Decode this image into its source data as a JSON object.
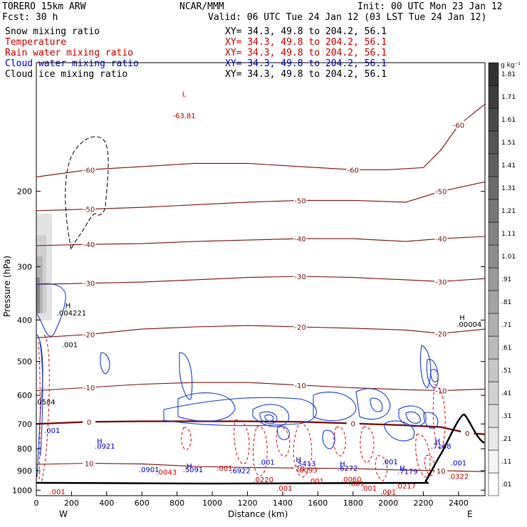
{
  "header": {
    "model": "TORERO  15km ARW",
    "org": "NCAR/MMM",
    "init": "Init: 00 UTC Mon 23 Jan 12",
    "fcst": "Fcst:   30 h",
    "valid": "Valid: 06 UTC Tue 24 Jan 12 (03 LST Tue 24 Jan 12)"
  },
  "fields": [
    {
      "name": "Snow mixing ratio",
      "xy": "XY=  34.3, 49.8 to 204.2, 56.1",
      "color": "#000000"
    },
    {
      "name": "Temperature",
      "xy": "XY=  34.3, 49.8 to 204.2, 56.1",
      "color": "#cc0000"
    },
    {
      "name": "Rain water mixing ratio",
      "xy": "XY=  34.3, 49.8 to 204.2, 56.1",
      "color": "#cc0000"
    },
    {
      "name": "Cloud water mixing ratio",
      "xy": "XY=  34.3, 49.8 to 204.2, 56.1",
      "color": "#0000cc"
    },
    {
      "name": "Cloud ice mixing ratio",
      "xy": "XY=  34.3, 49.8 to 204.2, 56.1",
      "color": "#000000"
    }
  ],
  "chart_data": {
    "type": "cross-section contour",
    "xlabel": "Distance (km)",
    "ylabel": "Pressure (hPa)",
    "x_ticks": [
      0,
      200,
      400,
      600,
      800,
      1000,
      1200,
      1400,
      1600,
      1800,
      2000,
      2200,
      2400
    ],
    "y_ticks": [
      200,
      300,
      400,
      500,
      600,
      700,
      800,
      900,
      1000
    ],
    "x_range": [
      0,
      2550
    ],
    "y_range": [
      1030,
      100
    ],
    "endpoints": {
      "left": "W",
      "right": "E"
    },
    "colorbar": {
      "units": "g kg⁻¹",
      "levels": [
        ".01",
        ".11",
        ".21",
        ".31",
        ".41",
        ".51",
        ".61",
        ".71",
        ".81",
        ".91",
        "1.01",
        "1.11",
        "1.21",
        "1.31",
        "1.41",
        "1.51",
        "1.61",
        "1.71",
        "1.81"
      ]
    },
    "isotherms": [
      {
        "label": "-60",
        "points": [
          [
            0,
            185
          ],
          [
            300,
            178
          ],
          [
            600,
            175
          ],
          [
            900,
            172
          ],
          [
            1200,
            172
          ],
          [
            1500,
            175
          ],
          [
            1800,
            178
          ],
          [
            2000,
            178
          ],
          [
            2200,
            176
          ],
          [
            2300,
            160
          ],
          [
            2400,
            140
          ],
          [
            2550,
            125
          ]
        ]
      },
      {
        "label": "-50",
        "points": [
          [
            0,
            222
          ],
          [
            300,
            220
          ],
          [
            600,
            218
          ],
          [
            900,
            215
          ],
          [
            1200,
            212
          ],
          [
            1500,
            210
          ],
          [
            1800,
            210
          ],
          [
            2100,
            212
          ],
          [
            2300,
            200
          ],
          [
            2550,
            190
          ]
        ]
      },
      {
        "label": "-40",
        "points": [
          [
            0,
            268
          ],
          [
            300,
            266
          ],
          [
            600,
            265
          ],
          [
            900,
            262
          ],
          [
            1200,
            260
          ],
          [
            1500,
            258
          ],
          [
            1800,
            258
          ],
          [
            2100,
            262
          ],
          [
            2300,
            258
          ],
          [
            2550,
            255
          ]
        ]
      },
      {
        "label": "-30",
        "points": [
          [
            0,
            330
          ],
          [
            300,
            328
          ],
          [
            600,
            326
          ],
          [
            900,
            322
          ],
          [
            1200,
            318
          ],
          [
            1500,
            316
          ],
          [
            1800,
            318
          ],
          [
            2100,
            322
          ],
          [
            2300,
            325
          ],
          [
            2550,
            320
          ]
        ]
      },
      {
        "label": "-20",
        "points": [
          [
            0,
            440
          ],
          [
            300,
            432
          ],
          [
            600,
            420
          ],
          [
            900,
            415
          ],
          [
            1200,
            412
          ],
          [
            1500,
            415
          ],
          [
            1800,
            418
          ],
          [
            2100,
            422
          ],
          [
            2300,
            430
          ],
          [
            2550,
            420
          ]
        ]
      },
      {
        "label": "-10",
        "points": [
          [
            0,
            585
          ],
          [
            300,
            575
          ],
          [
            600,
            565
          ],
          [
            900,
            560
          ],
          [
            1200,
            560
          ],
          [
            1500,
            568
          ],
          [
            1800,
            576
          ],
          [
            2100,
            582
          ],
          [
            2300,
            585
          ],
          [
            2550,
            580
          ]
        ]
      },
      {
        "label": "0",
        "points": [
          [
            0,
            700
          ],
          [
            300,
            692
          ],
          [
            600,
            690
          ],
          [
            900,
            690
          ],
          [
            1200,
            690
          ],
          [
            1500,
            692
          ],
          [
            1800,
            698
          ],
          [
            2100,
            705
          ],
          [
            2300,
            712
          ],
          [
            2450,
            735
          ],
          [
            2550,
            740
          ]
        ]
      },
      {
        "label": "10",
        "points": [
          [
            0,
            870
          ],
          [
            300,
            865
          ],
          [
            600,
            868
          ],
          [
            900,
            880
          ],
          [
            1200,
            885
          ],
          [
            1500,
            888
          ],
          [
            1800,
            890
          ],
          [
            2100,
            898
          ],
          [
            2300,
            900
          ],
          [
            2550,
            905
          ]
        ]
      }
    ],
    "annotations": [
      {
        "text": "L",
        "x": 840,
        "y": 120,
        "color": "#cc0000"
      },
      {
        "text": "-63.81",
        "x": 840,
        "y": 135,
        "color": "#cc0000"
      },
      {
        "text": "H",
        "x": 180,
        "y": 375,
        "color": "#000000"
      },
      {
        "text": ".004221",
        "x": 200,
        "y": 390,
        "color": "#000000"
      },
      {
        "text": ".001",
        "x": 190,
        "y": 463,
        "color": "#000000"
      },
      {
        "text": "H",
        "x": 2420,
        "y": 400,
        "color": "#000000"
      },
      {
        "text": ".00004",
        "x": 2460,
        "y": 415,
        "color": "#000000"
      },
      {
        "text": ".0584",
        "x": 50,
        "y": 630,
        "color": "#000000"
      },
      {
        "text": ".001",
        "x": 90,
        "y": 735,
        "color": "#0000cc"
      },
      {
        "text": "H",
        "x": 360,
        "y": 778,
        "color": "#0000cc"
      },
      {
        "text": ".0921",
        "x": 390,
        "y": 800,
        "color": "#0000cc"
      },
      {
        "text": "H",
        "x": 870,
        "y": 890,
        "color": "#0000cc"
      },
      {
        "text": ".5091",
        "x": 890,
        "y": 908,
        "color": "#0000cc"
      },
      {
        "text": ".0043",
        "x": 740,
        "y": 920,
        "color": "#cc0000"
      },
      {
        "text": ".0901",
        "x": 640,
        "y": 908,
        "color": "#0000cc"
      },
      {
        "text": ".001",
        "x": 1070,
        "y": 900,
        "color": "#cc0000"
      },
      {
        "text": ".6922",
        "x": 1160,
        "y": 912,
        "color": "#0000cc"
      },
      {
        "text": ".001",
        "x": 1310,
        "y": 872,
        "color": "#0000cc"
      },
      {
        "text": ".0220",
        "x": 1290,
        "y": 958,
        "color": "#cc0000"
      },
      {
        "text": "H",
        "x": 1490,
        "y": 860,
        "color": "#0000cc"
      },
      {
        "text": ".5413",
        "x": 1530,
        "y": 878,
        "color": "#0000cc"
      },
      {
        "text": ".0093",
        "x": 1540,
        "y": 910,
        "color": "#cc0000"
      },
      {
        "text": ".001",
        "x": 1590,
        "y": 965,
        "color": "#cc0000"
      },
      {
        "text": "H",
        "x": 1740,
        "y": 880,
        "color": "#0000cc"
      },
      {
        "text": ".6272",
        "x": 1770,
        "y": 900,
        "color": "#0000cc"
      },
      {
        "text": ".0060",
        "x": 1790,
        "y": 955,
        "color": "#cc0000"
      },
      {
        "text": ".001",
        "x": 1820,
        "y": 978,
        "color": "#cc0000"
      },
      {
        "text": ".001",
        "x": 2010,
        "y": 870,
        "color": "#0000cc"
      },
      {
        "text": "H",
        "x": 2080,
        "y": 900,
        "color": "#0000cc"
      },
      {
        "text": ".7179",
        "x": 2110,
        "y": 916,
        "color": "#0000cc"
      },
      {
        "text": ".0217",
        "x": 2100,
        "y": 992,
        "color": "#cc0000"
      },
      {
        "text": "H",
        "x": 2280,
        "y": 778,
        "color": "#0000cc"
      },
      {
        "text": ".7168",
        "x": 2300,
        "y": 800,
        "color": "#0000cc"
      },
      {
        "text": ".0322",
        "x": 2400,
        "y": 942,
        "color": "#cc0000"
      },
      {
        "text": ".001",
        "x": 2400,
        "y": 875,
        "color": "#0000cc"
      },
      {
        "text": ".001",
        "x": 1410,
        "y": 1003,
        "color": "#cc0000"
      },
      {
        "text": ".001",
        "x": 1890,
        "y": 1003,
        "color": "#cc0000"
      },
      {
        "text": ".001",
        "x": 2000,
        "y": 1025,
        "color": "#cc0000"
      },
      {
        "text": ".001",
        "x": 120,
        "y": 1023,
        "color": "#cc0000"
      }
    ]
  }
}
